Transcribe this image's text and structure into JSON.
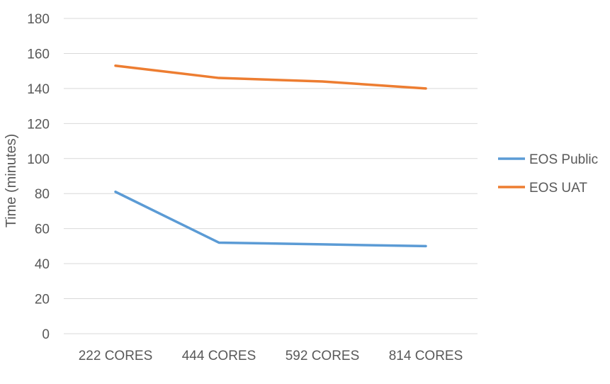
{
  "chart_data": {
    "type": "line",
    "categories": [
      "222 CORES",
      "444 CORES",
      "592 CORES",
      "814 CORES"
    ],
    "series": [
      {
        "name": "EOS Public",
        "values": [
          81,
          52,
          51,
          50
        ],
        "color": "#5b9bd5"
      },
      {
        "name": "EOS UAT",
        "values": [
          153,
          146,
          144,
          140
        ],
        "color": "#ed7d31"
      }
    ],
    "ylabel": "Time (minutes)",
    "ylim": [
      0,
      180
    ],
    "yticks": [
      0,
      20,
      40,
      60,
      80,
      100,
      120,
      140,
      160,
      180
    ],
    "grid": true,
    "legend_position": "right"
  }
}
